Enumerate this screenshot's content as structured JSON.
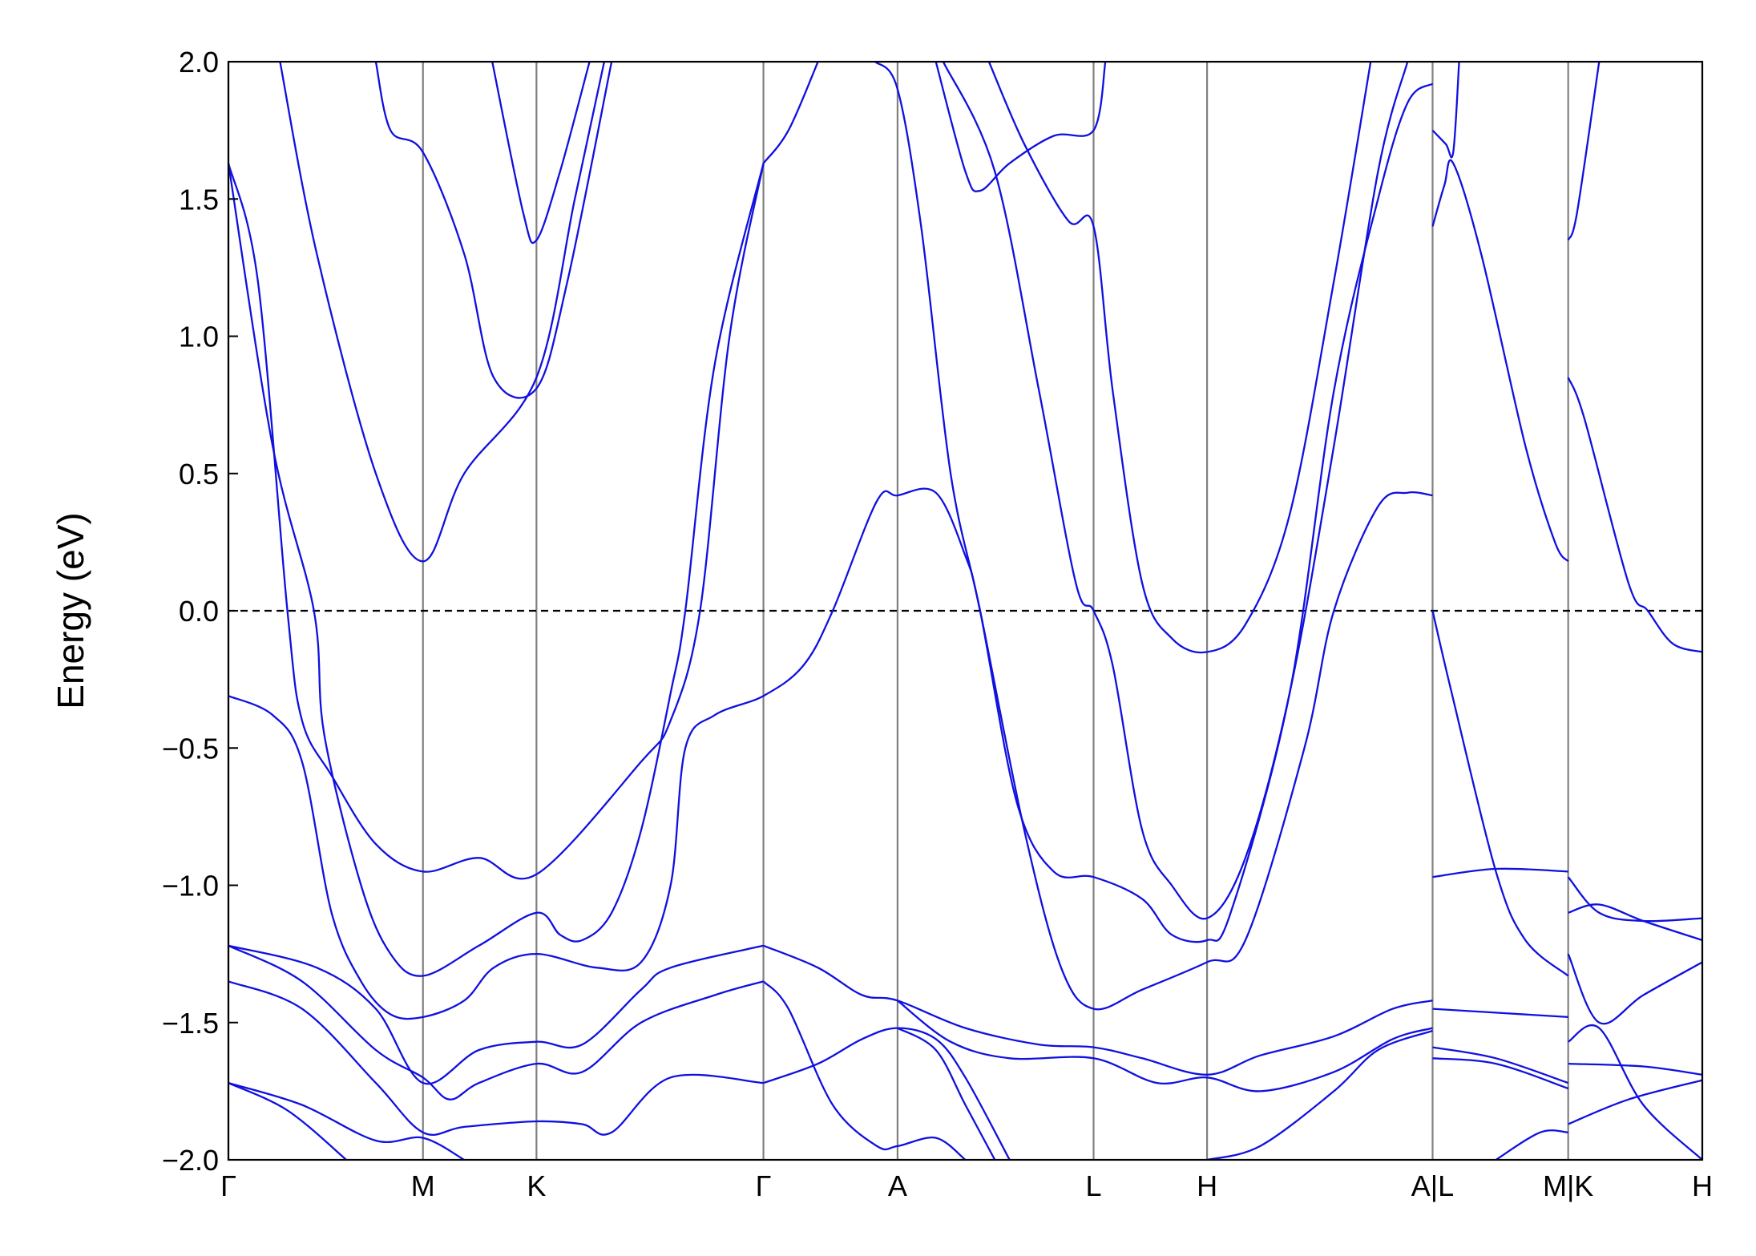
{
  "chart_data": {
    "type": "line",
    "ylabel": "Energy (eV)",
    "ylim": [
      -2.0,
      2.0
    ],
    "yticks": [
      {
        "value": 2.0,
        "label": "2.0"
      },
      {
        "value": 1.5,
        "label": "1.5"
      },
      {
        "value": 1.0,
        "label": "1.0"
      },
      {
        "value": 0.5,
        "label": "0.5"
      },
      {
        "value": 0.0,
        "label": "0.0"
      },
      {
        "value": -0.5,
        "label": "−0.5"
      },
      {
        "value": -1.0,
        "label": "−1.0"
      },
      {
        "value": -1.5,
        "label": "−1.5"
      },
      {
        "value": -2.0,
        "label": "−2.0"
      }
    ],
    "xlim": [
      0,
      1
    ],
    "xticks": [
      {
        "value": 0,
        "label": "Γ"
      },
      {
        "value": 0.132,
        "label": "M"
      },
      {
        "value": 0.209,
        "label": "K"
      },
      {
        "value": 0.363,
        "label": "Γ"
      },
      {
        "value": 0.454,
        "label": "A"
      },
      {
        "value": 0.587,
        "label": "L"
      },
      {
        "value": 0.664,
        "label": "H"
      },
      {
        "value": 0.817,
        "label": "A|L"
      },
      {
        "value": 0.909,
        "label": "M|K"
      },
      {
        "value": 1,
        "label": "H"
      }
    ],
    "grid": true,
    "grid_color": "#808080",
    "reference_line": 0,
    "color": "#1010e0",
    "series": [
      {
        "x": [
          0,
          0.02,
          0.04,
          0.05,
          0.07,
          0.1,
          0.132,
          0.17,
          0.209,
          0.28,
          0.3,
          0.32,
          0.34,
          0.363
        ],
        "values": [
          1.63,
          1.2,
          0,
          -0.4,
          -0.6,
          -0.85,
          -0.95,
          -0.9,
          -0.96,
          -0.55,
          -0.4,
          0,
          1.0,
          1.63
        ]
      },
      {
        "x": [
          0,
          0.03,
          0.058,
          0.065,
          0.09,
          0.11,
          0.132,
          0.17,
          0.209,
          0.225,
          0.24,
          0.26,
          0.28,
          0.3,
          0.31,
          0.33,
          0.363
        ],
        "values": [
          1.63,
          0.6,
          0,
          -0.45,
          -1.0,
          -1.25,
          -1.33,
          -1.22,
          -1.1,
          -1.18,
          -1.2,
          -1.1,
          -0.8,
          -0.3,
          0,
          0.9,
          1.63
        ]
      },
      {
        "x": [
          0,
          0.03,
          0.05,
          0.07,
          0.09,
          0.11,
          0.132,
          0.16,
          0.18,
          0.209,
          0.25,
          0.28,
          0.3,
          0.31,
          0.33,
          0.363,
          0.39,
          0.41,
          0.44,
          0.454,
          0.48,
          0.5,
          0.51,
          0.54,
          0.565,
          0.587,
          0.62,
          0.664,
          0.69,
          0.73,
          0.75,
          0.78,
          0.8,
          0.817
        ],
        "values": [
          -0.31,
          -0.38,
          -0.55,
          -1.1,
          -1.35,
          -1.47,
          -1.48,
          -1.42,
          -1.3,
          -1.25,
          -1.3,
          -1.28,
          -1.0,
          -0.5,
          -0.38,
          -0.31,
          -0.2,
          0,
          0.4,
          0.42,
          0.43,
          0.2,
          0,
          -0.8,
          -1.3,
          -1.45,
          -1.38,
          -1.28,
          -1.2,
          -0.5,
          0,
          0.38,
          0.43,
          0.42
        ]
      },
      {
        "x": [
          0.035,
          0.06,
          0.1,
          0.132,
          0.16,
          0.209,
          0.235,
          0.255
        ],
        "values": [
          2.0,
          1.3,
          0.5,
          0.18,
          0.5,
          0.85,
          1.5,
          2.0
        ]
      },
      {
        "x": [
          0.1,
          0.11,
          0.132,
          0.16,
          0.18,
          0.209,
          0.23,
          0.26
        ],
        "values": [
          2.0,
          1.75,
          1.67,
          1.3,
          0.85,
          0.81,
          1.2,
          2.0
        ]
      },
      {
        "x": [
          0.179,
          0.2,
          0.209,
          0.225,
          0.245
        ],
        "values": [
          2.0,
          1.45,
          1.35,
          1.6,
          2.0
        ]
      },
      {
        "x": [
          0.363,
          0.38,
          0.4
        ],
        "values": [
          1.63,
          1.75,
          2.0
        ]
      },
      {
        "x": [
          0.439,
          0.454,
          0.47,
          0.49,
          0.51,
          0.535,
          0.56,
          0.587,
          0.62,
          0.64,
          0.664,
          0.68,
          0.72,
          0.75,
          0.78,
          0.8,
          0.817
        ],
        "values": [
          2.0,
          1.9,
          1.4,
          0.5,
          0,
          -0.7,
          -0.95,
          -0.97,
          -1.05,
          -1.18,
          -1.2,
          -1.1,
          -0.3,
          0.8,
          1.5,
          1.85,
          1.92
        ]
      },
      {
        "x": [
          0.485,
          0.52,
          0.55,
          0.575,
          0.587,
          0.6,
          0.62,
          0.64,
          0.664,
          0.69,
          0.72,
          0.75,
          0.78,
          0.8
        ],
        "values": [
          2.0,
          1.6,
          0.8,
          0.1,
          0,
          -0.2,
          -0.8,
          -1.0,
          -1.12,
          -0.9,
          -0.3,
          0.6,
          1.6,
          2.0
        ]
      },
      {
        "x": [
          0.48,
          0.5,
          0.51,
          0.53,
          0.56,
          0.587,
          0.595
        ],
        "values": [
          2.0,
          1.6,
          1.53,
          1.63,
          1.73,
          1.75,
          2.0
        ]
      },
      {
        "x": [
          0.516,
          0.54,
          0.57,
          0.587,
          0.6,
          0.62,
          0.64,
          0.664,
          0.69,
          0.72,
          0.75,
          0.775
        ],
        "values": [
          2.0,
          1.7,
          1.42,
          1.4,
          0.8,
          0.1,
          -0.1,
          -0.15,
          -0.05,
          0.35,
          1.2,
          2.0
        ]
      },
      {
        "x": [
          0.363,
          0.4,
          0.43,
          0.454,
          0.5,
          0.55,
          0.587,
          0.62,
          0.664,
          0.7,
          0.75,
          0.79,
          0.817
        ],
        "values": [
          -1.22,
          -1.3,
          -1.4,
          -1.42,
          -1.52,
          -1.58,
          -1.59,
          -1.63,
          -1.69,
          -1.62,
          -1.55,
          -1.45,
          -1.42
        ]
      },
      {
        "x": [
          0.363,
          0.38,
          0.41,
          0.44,
          0.454,
          0.48,
          0.5
        ],
        "values": [
          -1.35,
          -1.45,
          -1.8,
          -1.95,
          -1.95,
          -1.92,
          -2.0
        ]
      },
      {
        "x": [
          0.363,
          0.4,
          0.43,
          0.454,
          0.48,
          0.5,
          0.53
        ],
        "values": [
          -1.72,
          -1.65,
          -1.56,
          -1.52,
          -1.56,
          -1.7,
          -2.0
        ]
      },
      {
        "x": [
          0.454,
          0.49,
          0.53,
          0.587,
          0.63,
          0.664,
          0.7,
          0.75,
          0.79,
          0.817
        ],
        "values": [
          -1.42,
          -1.57,
          -1.63,
          -1.63,
          -1.72,
          -1.7,
          -1.75,
          -1.68,
          -1.56,
          -1.52
        ]
      },
      {
        "x": [
          0.454,
          0.48,
          0.5,
          0.52
        ],
        "values": [
          -1.52,
          -1.6,
          -1.8,
          -2.0
        ]
      },
      {
        "x": [
          0.664,
          0.7,
          0.75,
          0.78,
          0.817
        ],
        "values": [
          -2.0,
          -1.95,
          -1.75,
          -1.6,
          -1.53
        ]
      },
      {
        "x": [
          0,
          0.06,
          0.1,
          0.132,
          0.17,
          0.209,
          0.24,
          0.28,
          0.3,
          0.363
        ],
        "values": [
          -1.22,
          -1.3,
          -1.45,
          -1.72,
          -1.6,
          -1.57,
          -1.58,
          -1.38,
          -1.3,
          -1.22
        ]
      },
      {
        "x": [
          0,
          0.05,
          0.1,
          0.132,
          0.15,
          0.17,
          0.209,
          0.24,
          0.28,
          0.33,
          0.363
        ],
        "values": [
          -1.22,
          -1.35,
          -1.6,
          -1.7,
          -1.78,
          -1.72,
          -1.65,
          -1.68,
          -1.5,
          -1.4,
          -1.35
        ]
      },
      {
        "x": [
          0,
          0.05,
          0.1,
          0.132,
          0.16,
          0.209,
          0.24,
          0.26,
          0.3,
          0.363
        ],
        "values": [
          -1.35,
          -1.45,
          -1.72,
          -1.9,
          -1.88,
          -1.86,
          -1.87,
          -1.9,
          -1.7,
          -1.72
        ]
      },
      {
        "x": [
          0,
          0.05,
          0.1,
          0.132,
          0.16
        ],
        "values": [
          -1.72,
          -1.8,
          -1.93,
          -1.92,
          -2.0
        ]
      },
      {
        "x": [
          0,
          0.04,
          0.08
        ],
        "values": [
          -1.72,
          -1.82,
          -2.0
        ]
      },
      {
        "x": [
          0.817,
          0.86,
          0.909
        ],
        "values": [
          -0.97,
          -0.94,
          -0.95
        ]
      },
      {
        "x": [
          0.817,
          0.83,
          0.86,
          0.88,
          0.909
        ],
        "values": [
          0,
          -0.3,
          -0.95,
          -1.2,
          -1.33
        ]
      },
      {
        "x": [
          0.817,
          0.825,
          0.831,
          0.85,
          0.88,
          0.9,
          0.909
        ],
        "values": [
          1.4,
          1.55,
          1.63,
          1.3,
          0.6,
          0.25,
          0.18
        ]
      },
      {
        "x": [
          0.817,
          0.826,
          0.831,
          0.835
        ],
        "values": [
          1.75,
          1.7,
          1.67,
          2.0
        ]
      },
      {
        "x": [
          0.817,
          0.909
        ],
        "values": [
          -1.45,
          -1.48
        ]
      },
      {
        "x": [
          0.817,
          0.86,
          0.909
        ],
        "values": [
          -1.59,
          -1.63,
          -1.72
        ]
      },
      {
        "x": [
          0.817,
          0.86,
          0.909
        ],
        "values": [
          -1.63,
          -1.65,
          -1.74
        ]
      },
      {
        "x": [
          0.86,
          0.89,
          0.909
        ],
        "values": [
          -2.0,
          -1.9,
          -1.9
        ]
      },
      {
        "x": [
          0.909,
          0.92,
          0.95,
          0.963,
          0.98,
          1
        ],
        "values": [
          0.85,
          0.7,
          0.1,
          0,
          -0.12,
          -0.15
        ]
      },
      {
        "x": [
          0.909,
          0.915,
          0.93
        ],
        "values": [
          1.35,
          1.45,
          2.0
        ]
      },
      {
        "x": [
          0.909,
          0.93,
          0.96,
          1
        ],
        "values": [
          -0.97,
          -1.1,
          -1.13,
          -1.12
        ]
      },
      {
        "x": [
          0.909,
          0.93,
          0.96,
          1
        ],
        "values": [
          -1.1,
          -1.07,
          -1.13,
          -1.2
        ]
      },
      {
        "x": [
          0.909,
          0.93,
          0.96,
          1
        ],
        "values": [
          -1.25,
          -1.5,
          -1.4,
          -1.28
        ]
      },
      {
        "x": [
          0.909,
          0.93,
          0.96,
          1
        ],
        "values": [
          -1.57,
          -1.52,
          -1.8,
          -2.0
        ]
      },
      {
        "x": [
          0.909,
          0.96,
          1
        ],
        "values": [
          -1.65,
          -1.66,
          -1.69
        ]
      },
      {
        "x": [
          0.909,
          0.95,
          1
        ],
        "values": [
          -1.87,
          -1.78,
          -1.71
        ]
      }
    ]
  }
}
